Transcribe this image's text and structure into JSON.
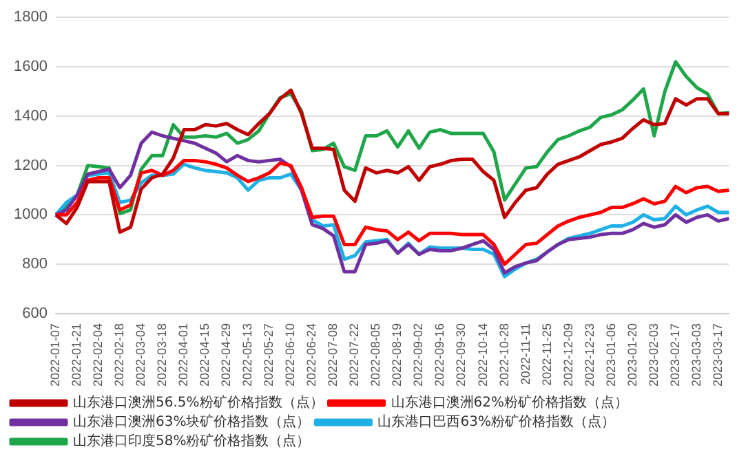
{
  "chart_data": {
    "type": "line",
    "categories": [
      "2022-01-07",
      null,
      "2022-01-21",
      null,
      "2022-02-04",
      null,
      "2022-02-18",
      null,
      "2022-03-04",
      null,
      "2022-03-18",
      null,
      "2022-04-01",
      null,
      "2022-04-15",
      null,
      "2022-04-29",
      null,
      "2022-05-13",
      null,
      "2022-05-27",
      null,
      "2022-06-10",
      null,
      "2022-06-24",
      null,
      "2022-07-08",
      null,
      "2022-07-22",
      null,
      "2022-08-05",
      null,
      "2022-08-19",
      null,
      "2022-09-02",
      null,
      "2022-09-16",
      null,
      "2022-09-30",
      null,
      "2022-10-14",
      null,
      "2022-10-28",
      null,
      "2022-11-11",
      null,
      "2022-11-25",
      null,
      "2022-12-09",
      null,
      "2022-12-23",
      null,
      "2023-01-06",
      null,
      "2023-01-20",
      null,
      "2023-02-03",
      null,
      "2023-02-17",
      null,
      "2023-03-03",
      null,
      "2023-03-17",
      null
    ],
    "series": [
      {
        "name": "山东港口澳洲56.5%粉矿价格指数（点）",
        "color": "#c00000",
        "values": [
          1000,
          965,
          1030,
          1135,
          1135,
          1135,
          930,
          950,
          1105,
          1150,
          1165,
          1230,
          1345,
          1345,
          1365,
          1360,
          1370,
          1345,
          1325,
          1370,
          1410,
          1470,
          1505,
          1410,
          1270,
          1270,
          1265,
          1100,
          1055,
          1190,
          1170,
          1180,
          1170,
          1195,
          1140,
          1195,
          1205,
          1220,
          1225,
          1225,
          1175,
          1140,
          990,
          1050,
          1100,
          1110,
          1165,
          1205,
          1220,
          1235,
          1260,
          1285,
          1295,
          1310,
          1350,
          1385,
          1365,
          1370,
          1470,
          1445,
          1470,
          1470,
          1410,
          1410
        ]
      },
      {
        "name": "山东港口澳洲62%粉矿价格指数（点）",
        "color": "#ff0000",
        "values": [
          1000,
          1000,
          1050,
          1140,
          1150,
          1150,
          1020,
          1040,
          1170,
          1180,
          1160,
          1180,
          1220,
          1220,
          1215,
          1205,
          1190,
          1160,
          1135,
          1150,
          1170,
          1210,
          1200,
          1110,
          990,
          995,
          995,
          880,
          880,
          950,
          940,
          935,
          900,
          930,
          895,
          925,
          925,
          925,
          920,
          920,
          920,
          880,
          800,
          840,
          880,
          885,
          920,
          955,
          975,
          990,
          1000,
          1010,
          1030,
          1030,
          1045,
          1065,
          1045,
          1055,
          1115,
          1090,
          1110,
          1115,
          1095,
          1100
        ]
      },
      {
        "name": "山东港口澳洲63%块矿价格指数（点）",
        "color": "#7030a0",
        "values": [
          1000,
          1020,
          1080,
          1165,
          1175,
          1185,
          1110,
          1160,
          1290,
          1335,
          1320,
          1310,
          1300,
          1290,
          1270,
          1250,
          1215,
          1240,
          1220,
          1215,
          1220,
          1225,
          1195,
          1100,
          960,
          945,
          915,
          770,
          770,
          880,
          885,
          895,
          845,
          880,
          840,
          860,
          855,
          855,
          865,
          880,
          895,
          860,
          765,
          790,
          805,
          815,
          850,
          880,
          900,
          905,
          910,
          920,
          925,
          925,
          940,
          965,
          950,
          960,
          1000,
          970,
          990,
          1000,
          975,
          985
        ]
      },
      {
        "name": "山东港口巴西63%粉矿价格指数（点）",
        "color": "#1fb0e6",
        "values": [
          1000,
          1050,
          1080,
          1160,
          1165,
          1170,
          1050,
          1060,
          1130,
          1160,
          1160,
          1165,
          1205,
          1190,
          1180,
          1175,
          1170,
          1150,
          1100,
          1140,
          1150,
          1150,
          1165,
          1100,
          980,
          955,
          960,
          820,
          835,
          890,
          895,
          900,
          845,
          885,
          840,
          870,
          865,
          865,
          865,
          860,
          860,
          840,
          750,
          780,
          805,
          820,
          850,
          880,
          905,
          915,
          925,
          940,
          955,
          955,
          970,
          1000,
          980,
          985,
          1035,
          1000,
          1020,
          1035,
          1010,
          1010
        ]
      },
      {
        "name": "山东港口印度58%粉矿价格指数（点）",
        "color": "#1fa64a",
        "values": [
          1000,
          1030,
          1080,
          1200,
          1195,
          1190,
          1005,
          1020,
          1185,
          1240,
          1240,
          1365,
          1315,
          1315,
          1320,
          1315,
          1330,
          1290,
          1305,
          1340,
          1410,
          1475,
          1490,
          1420,
          1260,
          1265,
          1290,
          1195,
          1180,
          1320,
          1320,
          1340,
          1275,
          1340,
          1270,
          1335,
          1345,
          1330,
          1330,
          1330,
          1330,
          1255,
          1060,
          1125,
          1190,
          1195,
          1255,
          1305,
          1320,
          1340,
          1355,
          1395,
          1405,
          1425,
          1465,
          1510,
          1320,
          1500,
          1620,
          1560,
          1515,
          1490,
          1410,
          1415
        ]
      }
    ],
    "ylim": [
      600,
      1800
    ],
    "yticks": [
      600,
      800,
      1000,
      1200,
      1400,
      1600,
      1800
    ],
    "grid": "y",
    "legend": "bottom",
    "marker": "none",
    "line_style": "solid"
  }
}
